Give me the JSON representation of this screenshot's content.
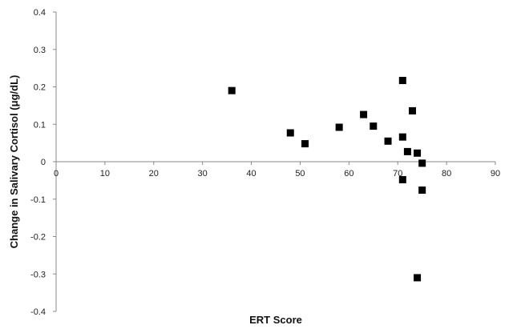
{
  "chart_data": {
    "type": "scatter",
    "xlabel": "ERT Score",
    "ylabel": "Change in Salivary Cortisol (μg/dL)",
    "xlim": [
      0,
      90
    ],
    "ylim": [
      -0.4,
      0.4
    ],
    "x_ticks": [
      0,
      10,
      20,
      30,
      40,
      50,
      60,
      70,
      80,
      90
    ],
    "y_ticks": [
      0.4,
      0.3,
      0.2,
      0.1,
      0,
      -0.1,
      -0.2,
      -0.3,
      -0.4
    ],
    "y_tick_labels": [
      "0.4",
      "0.3",
      "0.2",
      "0.1",
      "0",
      "-0.1",
      "-0.2",
      "-0.3",
      "-0.4"
    ],
    "grid": false,
    "marker": "square",
    "marker_color": "#000000",
    "points": [
      {
        "x": 36,
        "y": 0.19
      },
      {
        "x": 48,
        "y": 0.077
      },
      {
        "x": 51,
        "y": 0.048
      },
      {
        "x": 58,
        "y": 0.092
      },
      {
        "x": 63,
        "y": 0.126
      },
      {
        "x": 65,
        "y": 0.095
      },
      {
        "x": 68,
        "y": 0.055
      },
      {
        "x": 71,
        "y": 0.217
      },
      {
        "x": 71,
        "y": 0.066
      },
      {
        "x": 72,
        "y": 0.027
      },
      {
        "x": 73,
        "y": 0.136
      },
      {
        "x": 74,
        "y": 0.023
      },
      {
        "x": 75,
        "y": -0.004
      },
      {
        "x": 71,
        "y": -0.048
      },
      {
        "x": 75,
        "y": -0.076
      },
      {
        "x": 74,
        "y": -0.31
      }
    ]
  }
}
